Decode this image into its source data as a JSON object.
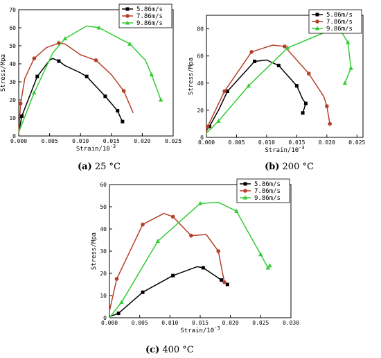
{
  "chart_data": [
    {
      "type": "line",
      "caption_label": "(a)",
      "caption_text": "25 °C",
      "xlabel": "Strain/10",
      "xlabel_sup": "-3",
      "ylabel": "Stress/Mpa",
      "xlim": [
        0,
        0.025
      ],
      "ylim": [
        0,
        70
      ],
      "xticks": [
        0.0,
        0.005,
        0.01,
        0.015,
        0.02,
        0.025
      ],
      "xtick_labels": [
        "0.000",
        "0.005",
        "0.010",
        "0.015",
        "0.020",
        "0.025"
      ],
      "yticks": [
        0,
        10,
        20,
        30,
        40,
        50,
        60,
        70
      ],
      "ytick_labels": [
        "0",
        "10",
        "20",
        "30",
        "40",
        "50",
        "60",
        "70"
      ],
      "legend_position": "top-right",
      "series": [
        {
          "name": "5.86m/s",
          "color": "#000000",
          "marker": "square",
          "points": [
            [
              0.0,
              2
            ],
            [
              0.0005,
              11
            ],
            [
              0.003,
              33
            ],
            [
              0.005,
              42
            ],
            [
              0.0055,
              43
            ],
            [
              0.0065,
              41.5
            ],
            [
              0.0075,
              39
            ],
            [
              0.01,
              35
            ],
            [
              0.011,
              33
            ],
            [
              0.014,
              22
            ],
            [
              0.016,
              14
            ],
            [
              0.0165,
              10
            ],
            [
              0.0168,
              8
            ]
          ],
          "marker_indices": [
            1,
            2,
            5,
            8,
            9,
            10,
            12
          ]
        },
        {
          "name": "7.86m/s",
          "color": "#b5402a",
          "marker": "circle",
          "points": [
            [
              0.0,
              2
            ],
            [
              0.0003,
              18
            ],
            [
              0.001,
              32
            ],
            [
              0.0025,
              43
            ],
            [
              0.0045,
              49
            ],
            [
              0.0065,
              51.5
            ],
            [
              0.0075,
              51
            ],
            [
              0.01,
              45
            ],
            [
              0.0125,
              42
            ],
            [
              0.015,
              34
            ],
            [
              0.017,
              25
            ],
            [
              0.0185,
              13
            ]
          ],
          "marker_indices": [
            1,
            3,
            5,
            8,
            10
          ]
        },
        {
          "name": "9.86m/s",
          "color": "#33cc33",
          "marker": "triangle",
          "points": [
            [
              0.0,
              2
            ],
            [
              0.0025,
              24
            ],
            [
              0.0055,
              46
            ],
            [
              0.0075,
              54
            ],
            [
              0.011,
              61
            ],
            [
              0.013,
              60
            ],
            [
              0.018,
              51
            ],
            [
              0.0205,
              42
            ],
            [
              0.0215,
              34
            ],
            [
              0.023,
              20
            ]
          ],
          "marker_indices": [
            1,
            3,
            5,
            6,
            8,
            9
          ]
        }
      ]
    },
    {
      "type": "line",
      "caption_label": "(b)",
      "caption_text": "200 °C",
      "xlabel": "Strain/10",
      "xlabel_sup": "-3",
      "ylabel": "Stress/Mpa",
      "xlim": [
        0,
        0.026
      ],
      "ylim": [
        0,
        90
      ],
      "xticks": [
        0.0,
        0.005,
        0.01,
        0.015,
        0.02,
        0.025
      ],
      "xtick_labels": [
        "0.000",
        "0.005",
        "0.010",
        "0.015",
        "0.020",
        "0.025"
      ],
      "yticks": [
        0,
        20,
        40,
        60,
        80
      ],
      "ytick_labels": [
        "0",
        "20",
        "40",
        "60",
        "80"
      ],
      "legend_position": "top-right",
      "series": [
        {
          "name": "5.86m/s",
          "color": "#000000",
          "marker": "square",
          "points": [
            [
              0.0,
              5
            ],
            [
              0.0005,
              8
            ],
            [
              0.002,
              20
            ],
            [
              0.0035,
              34
            ],
            [
              0.008,
              56
            ],
            [
              0.01,
              57
            ],
            [
              0.012,
              53
            ],
            [
              0.015,
              38
            ],
            [
              0.016,
              28
            ],
            [
              0.0165,
              25
            ],
            [
              0.016,
              18
            ]
          ],
          "marker_indices": [
            1,
            3,
            4,
            6,
            7,
            9,
            10
          ]
        },
        {
          "name": "7.86m/s",
          "color": "#b5402a",
          "marker": "circle",
          "points": [
            [
              0.0,
              3
            ],
            [
              0.0002,
              8
            ],
            [
              0.003,
              34
            ],
            [
              0.0075,
              63
            ],
            [
              0.011,
              68
            ],
            [
              0.013,
              67
            ],
            [
              0.017,
              47
            ],
            [
              0.0195,
              30
            ],
            [
              0.02,
              23
            ],
            [
              0.0205,
              10
            ]
          ],
          "marker_indices": [
            1,
            2,
            3,
            5,
            6,
            8,
            9
          ]
        },
        {
          "name": "9.86m/s",
          "color": "#33cc33",
          "marker": "triangle",
          "points": [
            [
              0.0,
              3
            ],
            [
              0.002,
              12
            ],
            [
              0.007,
              38
            ],
            [
              0.0135,
              66
            ],
            [
              0.02,
              78
            ],
            [
              0.0225,
              77
            ],
            [
              0.0235,
              70
            ],
            [
              0.024,
              51
            ],
            [
              0.023,
              40
            ]
          ],
          "marker_indices": [
            1,
            2,
            3,
            4,
            6,
            7,
            8
          ]
        }
      ]
    },
    {
      "type": "line",
      "caption_label": "(c)",
      "caption_text": "400 °C",
      "xlabel": "Strain/10",
      "xlabel_sup": "-3",
      "ylabel": "Stress/Mpa",
      "xlim": [
        0,
        0.03
      ],
      "ylim": [
        0,
        60
      ],
      "xticks": [
        0.0,
        0.005,
        0.01,
        0.015,
        0.02,
        0.025,
        0.03
      ],
      "xtick_labels": [
        "0.000",
        "0.005",
        "0.010",
        "0.015",
        "0.020",
        "0.025",
        "0.030"
      ],
      "yticks": [
        0,
        10,
        20,
        30,
        40,
        50,
        60
      ],
      "ytick_labels": [
        "0",
        "10",
        "20",
        "30",
        "40",
        "50",
        "60"
      ],
      "legend_position": "top-right",
      "series": [
        {
          "name": "5.86m/s",
          "color": "#000000",
          "marker": "square",
          "points": [
            [
              0.0,
              0.5
            ],
            [
              0.0015,
              2
            ],
            [
              0.0055,
              11.5
            ],
            [
              0.0105,
              19
            ],
            [
              0.0145,
              23
            ],
            [
              0.0155,
              22.5
            ],
            [
              0.0185,
              17
            ],
            [
              0.0195,
              15
            ]
          ],
          "marker_indices": [
            1,
            2,
            3,
            5,
            6,
            7
          ]
        },
        {
          "name": "7.86m/s",
          "color": "#b5402a",
          "marker": "circle",
          "points": [
            [
              0.0,
              3
            ],
            [
              0.0012,
              17.5
            ],
            [
              0.0055,
              42
            ],
            [
              0.009,
              47
            ],
            [
              0.0105,
              45.5
            ],
            [
              0.0135,
              37
            ],
            [
              0.016,
              37.5
            ],
            [
              0.018,
              30
            ],
            [
              0.019,
              16
            ]
          ],
          "marker_indices": [
            1,
            2,
            4,
            5,
            7,
            8
          ]
        },
        {
          "name": "9.86m/s",
          "color": "#33cc33",
          "marker": "triangle",
          "points": [
            [
              0.0,
              0
            ],
            [
              0.002,
              7
            ],
            [
              0.008,
              34.5
            ],
            [
              0.015,
              51.5
            ],
            [
              0.018,
              52
            ],
            [
              0.021,
              48
            ],
            [
              0.025,
              28.5
            ],
            [
              0.0262,
              22.5
            ],
            [
              0.0265,
              23.5
            ]
          ],
          "marker_indices": [
            1,
            2,
            3,
            5,
            6,
            7,
            8
          ]
        }
      ]
    }
  ]
}
